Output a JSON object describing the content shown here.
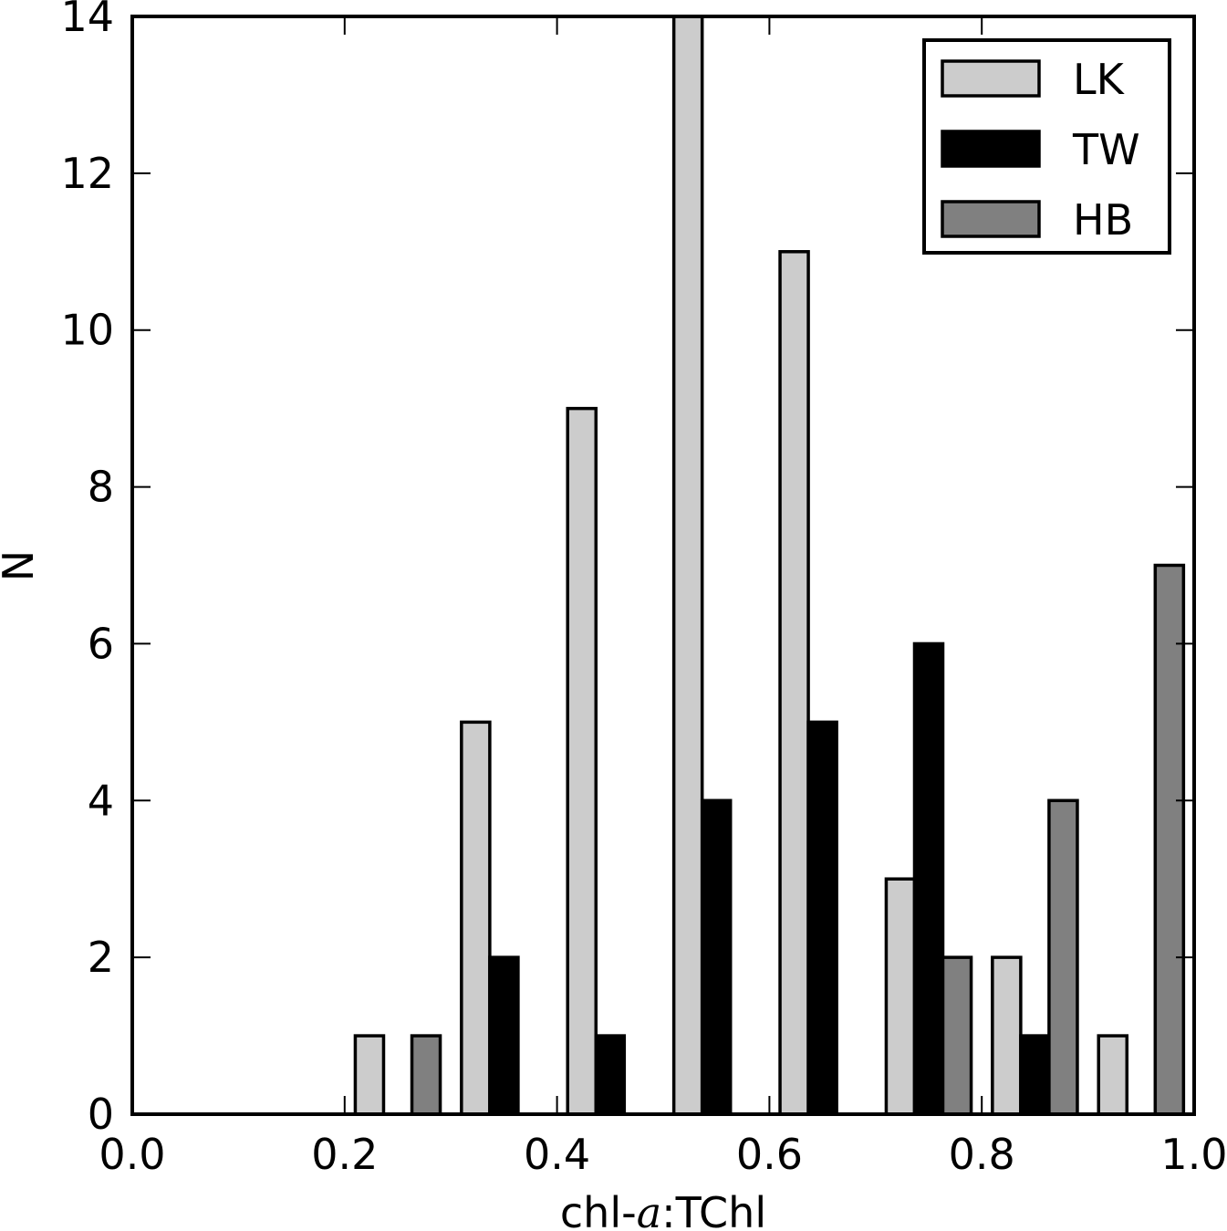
{
  "chart_data": {
    "type": "bar",
    "xlabel_prefix": "chl-",
    "xlabel_italic": "a",
    "xlabel_suffix": ":TChl",
    "ylabel": "N",
    "xlim": [
      0.0,
      1.0
    ],
    "ylim": [
      0,
      14
    ],
    "x_ticks": [
      "0.0",
      "0.2",
      "0.4",
      "0.6",
      "0.8",
      "1.0"
    ],
    "y_ticks": [
      "0",
      "2",
      "4",
      "6",
      "8",
      "10",
      "12",
      "14"
    ],
    "legend_position": "top-right",
    "bin_edges": [
      0.0,
      0.1,
      0.2,
      0.3,
      0.4,
      0.5,
      0.6,
      0.7,
      0.8,
      0.9,
      1.0
    ],
    "series": [
      {
        "name": "LK",
        "color": "#cccccc",
        "values": [
          0,
          0,
          1,
          5,
          9,
          14,
          11,
          3,
          2,
          1
        ]
      },
      {
        "name": "TW",
        "color": "#000000",
        "values": [
          0,
          0,
          0,
          2,
          1,
          4,
          5,
          6,
          1,
          0
        ]
      },
      {
        "name": "HB",
        "color": "#808080",
        "values": [
          0,
          0,
          1,
          0,
          0,
          0,
          0,
          2,
          4,
          7
        ]
      }
    ]
  }
}
